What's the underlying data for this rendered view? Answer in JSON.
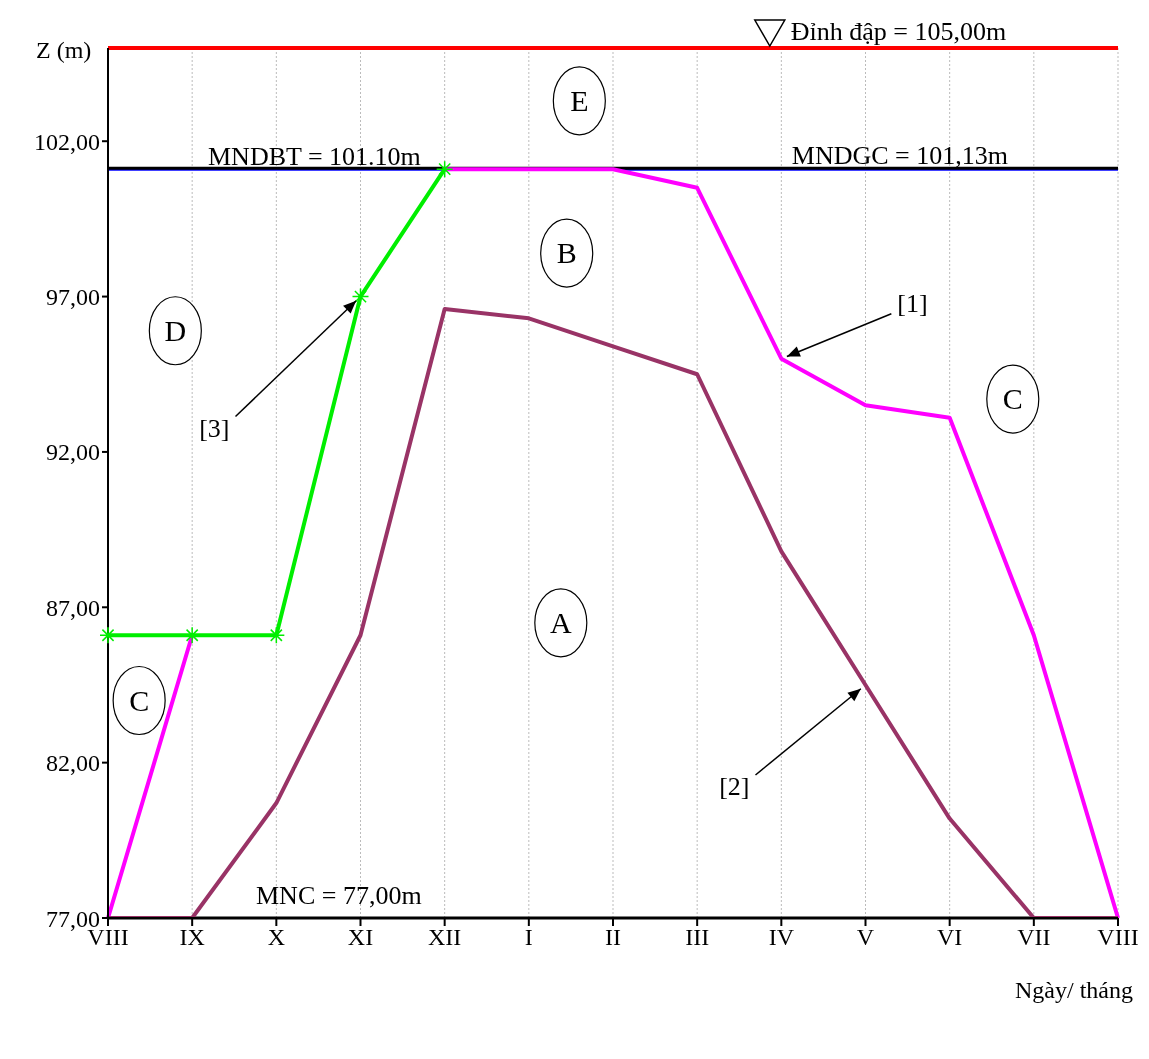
{
  "chart_data": {
    "type": "line",
    "xlabel": "Ngày/ tháng",
    "ylabel": "Z (m)",
    "categories": [
      "VIII",
      "IX",
      "X",
      "XI",
      "XII",
      "I",
      "II",
      "III",
      "IV",
      "V",
      "VI",
      "VII",
      "VIII"
    ],
    "series": [
      {
        "color": "#ff00ff",
        "values": [
          77,
          86.1,
          null,
          null,
          101.1,
          101.1,
          101.1,
          100.5,
          95.0,
          93.5,
          93.1,
          86.1,
          77
        ]
      },
      {
        "color": "#00ee00",
        "marker": "cross",
        "values": [
          86.1,
          86.1,
          86.1,
          97.0,
          101.1,
          null,
          null,
          null,
          null,
          null,
          null,
          null,
          null
        ]
      },
      {
        "color": "#993366",
        "values": [
          77,
          77,
          80.7,
          86.1,
          96.6,
          96.3,
          95.4,
          94.5,
          88.8,
          84.5,
          80.2,
          77,
          77
        ]
      }
    ],
    "ylim": [
      77,
      105
    ],
    "yticks": [
      {
        "value": 77,
        "label": "77,00"
      },
      {
        "value": 82,
        "label": "82,00"
      },
      {
        "value": 87,
        "label": "87,00"
      },
      {
        "value": 92,
        "label": "92,00"
      },
      {
        "value": 97,
        "label": "97,00"
      },
      {
        "value": 102,
        "label": "102,00"
      }
    ],
    "grid": "x",
    "legend": false,
    "ref_lines": [
      {
        "axis": "y",
        "value": 105,
        "label": "Đỉnh đập = 105,00m",
        "color": "#ff0000"
      },
      {
        "axis": "y",
        "value": 101.1,
        "label": "MNDBT = 101.10m",
        "color": "#0000ff"
      },
      {
        "axis": "y",
        "value": 101.13,
        "label": "MNDGC = 101,13m",
        "color": "#000000"
      },
      {
        "axis": "y",
        "value": 77,
        "label": "MNC = 77,00m",
        "color": "#000000"
      }
    ],
    "annotations": [
      "E",
      "B",
      "D",
      "C",
      "A",
      "C",
      {
        "text": "[1]",
        "x": "IV",
        "y": 95.0
      },
      {
        "text": "[2]",
        "x": "V",
        "y": 84.5
      },
      {
        "text": "[3]",
        "x": "XI",
        "y": 97.0
      }
    ]
  }
}
